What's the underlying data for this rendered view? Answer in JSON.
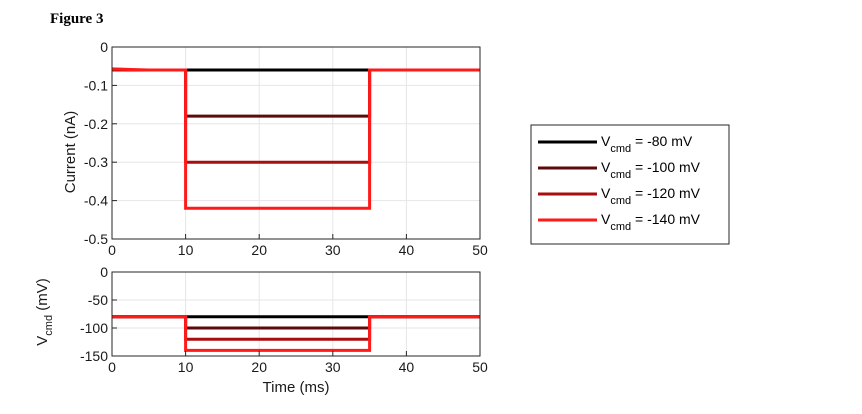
{
  "figure_label": "Figure 3",
  "colors": {
    "series": [
      "#000000",
      "#5c0a0a",
      "#a80e0e",
      "#ff1a1a"
    ],
    "grid": "#e6e6e6",
    "axis": "#262626"
  },
  "chart_data": [
    {
      "type": "line",
      "title": "",
      "xlabel": "",
      "ylabel": "Current (nA)",
      "xlim": [
        0,
        50
      ],
      "ylim": [
        -0.5,
        0
      ],
      "xticks": [
        "0",
        "10",
        "20",
        "30",
        "40",
        "50"
      ],
      "yticks": [
        "0",
        "-0.1",
        "-0.2",
        "-0.3",
        "-0.4",
        "-0.5"
      ],
      "grid": true,
      "series": [
        {
          "name": "V_cmd = -80 mV",
          "points": [
            [
              0,
              -0.06
            ],
            [
              10,
              -0.06
            ],
            [
              10,
              -0.06
            ],
            [
              35,
              -0.06
            ],
            [
              35,
              -0.06
            ],
            [
              50,
              -0.06
            ]
          ]
        },
        {
          "name": "V_cmd = -100 mV",
          "points": [
            [
              0,
              -0.06
            ],
            [
              10,
              -0.06
            ],
            [
              10,
              -0.18
            ],
            [
              35,
              -0.18
            ],
            [
              35,
              -0.06
            ],
            [
              50,
              -0.06
            ]
          ]
        },
        {
          "name": "V_cmd = -120 mV",
          "points": [
            [
              0,
              -0.06
            ],
            [
              10,
              -0.06
            ],
            [
              10,
              -0.3
            ],
            [
              35,
              -0.3
            ],
            [
              35,
              -0.06
            ],
            [
              50,
              -0.06
            ]
          ]
        },
        {
          "name": "V_cmd = -140 mV",
          "points": [
            [
              0,
              -0.057
            ],
            [
              5,
              -0.06
            ],
            [
              10,
              -0.06
            ],
            [
              10,
              -0.42
            ],
            [
              35,
              -0.42
            ],
            [
              35,
              -0.06
            ],
            [
              50,
              -0.06
            ]
          ]
        }
      ]
    },
    {
      "type": "line",
      "title": "",
      "xlabel": "Time (ms)",
      "ylabel": "V",
      "ylabel_sub": "cmd",
      "ylabel_unit": " (mV)",
      "xlim": [
        0,
        50
      ],
      "ylim": [
        -150,
        0
      ],
      "xticks": [
        "0",
        "10",
        "20",
        "30",
        "40",
        "50"
      ],
      "yticks": [
        "0",
        "-50",
        "-100",
        "-150"
      ],
      "grid": true,
      "series": [
        {
          "name": "V_cmd = -80 mV",
          "points": [
            [
              0,
              -80
            ],
            [
              10,
              -80
            ],
            [
              10,
              -80
            ],
            [
              35,
              -80
            ],
            [
              35,
              -80
            ],
            [
              50,
              -80
            ]
          ]
        },
        {
          "name": "V_cmd = -100 mV",
          "points": [
            [
              0,
              -80
            ],
            [
              10,
              -80
            ],
            [
              10,
              -100
            ],
            [
              35,
              -100
            ],
            [
              35,
              -80
            ],
            [
              50,
              -80
            ]
          ]
        },
        {
          "name": "V_cmd = -120 mV",
          "points": [
            [
              0,
              -80
            ],
            [
              10,
              -80
            ],
            [
              10,
              -120
            ],
            [
              35,
              -120
            ],
            [
              35,
              -80
            ],
            [
              50,
              -80
            ]
          ]
        },
        {
          "name": "V_cmd = -140 mV",
          "points": [
            [
              0,
              -80
            ],
            [
              10,
              -80
            ],
            [
              10,
              -140
            ],
            [
              35,
              -140
            ],
            [
              35,
              -80
            ],
            [
              50,
              -80
            ]
          ]
        }
      ]
    }
  ],
  "legend": {
    "placement": "right",
    "items": [
      {
        "main": "V",
        "sub": "cmd",
        "value": " = -80 mV"
      },
      {
        "main": "V",
        "sub": "cmd",
        "value": " = -100 mV"
      },
      {
        "main": "V",
        "sub": "cmd",
        "value": " = -120 mV"
      },
      {
        "main": "V",
        "sub": "cmd",
        "value": " = -140 mV"
      }
    ]
  }
}
